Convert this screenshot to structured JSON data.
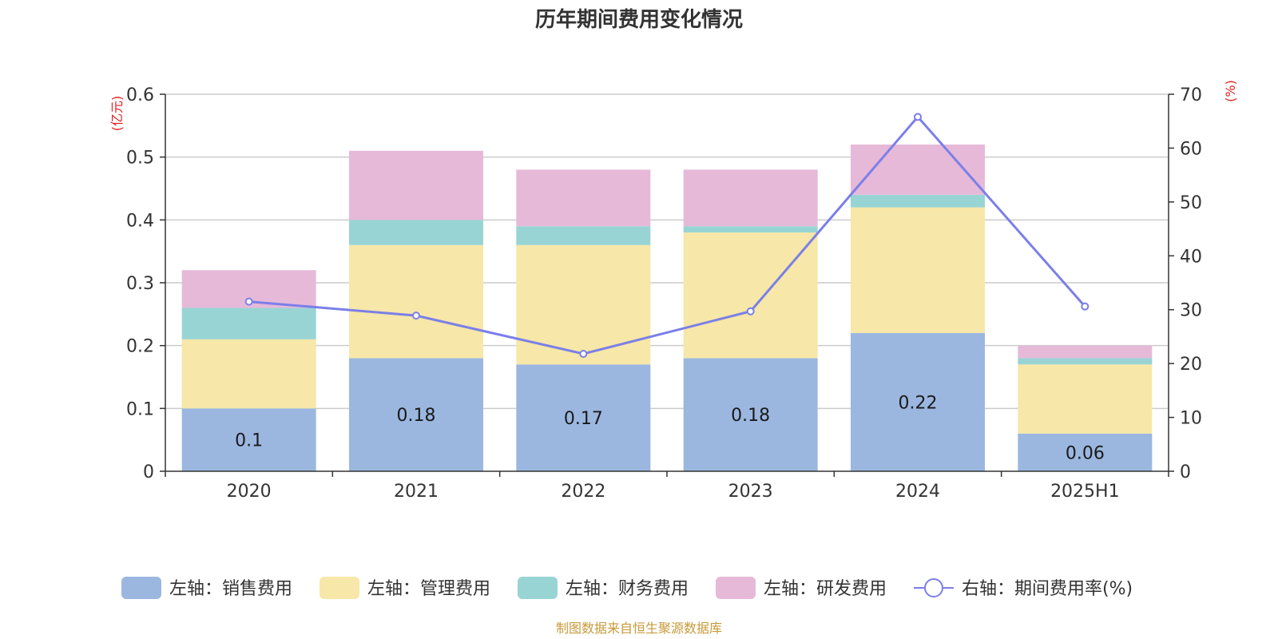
{
  "chart_data": {
    "type": "bar",
    "title": "历年期间费用变化情况",
    "categories": [
      "2020",
      "2021",
      "2022",
      "2023",
      "2024",
      "2025H1"
    ],
    "left_axis": {
      "unit": "(亿元)",
      "ylim": [
        0,
        0.6
      ],
      "ticks": [
        "0",
        "0.1",
        "0.2",
        "0.3",
        "0.4",
        "0.5",
        "0.6"
      ]
    },
    "right_axis": {
      "unit": "(%)",
      "ylim": [
        0,
        70
      ],
      "ticks": [
        "0",
        "10",
        "20",
        "30",
        "40",
        "50",
        "60",
        "70"
      ]
    },
    "series": [
      {
        "name": "左轴：销售费用",
        "kind": "bar",
        "color": "#9bb7e0",
        "values": [
          0.1,
          0.18,
          0.17,
          0.18,
          0.22,
          0.06
        ],
        "labels": [
          "0.1",
          "0.18",
          "0.17",
          "0.18",
          "0.22",
          "0.06"
        ]
      },
      {
        "name": "左轴：管理费用",
        "kind": "bar",
        "color": "#f7e7a8",
        "values": [
          0.11,
          0.18,
          0.19,
          0.2,
          0.2,
          0.11
        ]
      },
      {
        "name": "左轴：财务费用",
        "kind": "bar",
        "color": "#99d4d4",
        "values": [
          0.05,
          0.04,
          0.03,
          0.01,
          0.02,
          0.01
        ]
      },
      {
        "name": "左轴：研发费用",
        "kind": "bar",
        "color": "#e6b9d9",
        "values": [
          0.06,
          0.11,
          0.09,
          0.09,
          0.08,
          0.02
        ]
      },
      {
        "name": "右轴：期间费用率(%)",
        "kind": "line",
        "axis": "right",
        "color": "#7b7fe8",
        "values": [
          31.5,
          28.9,
          21.8,
          29.7,
          65.8,
          30.6
        ]
      }
    ],
    "grid": true,
    "legend_position": "bottom",
    "unit_color": "#e02020"
  },
  "source": {
    "text": "制图数据来自恒生聚源数据库",
    "color": "#c79a3a"
  }
}
